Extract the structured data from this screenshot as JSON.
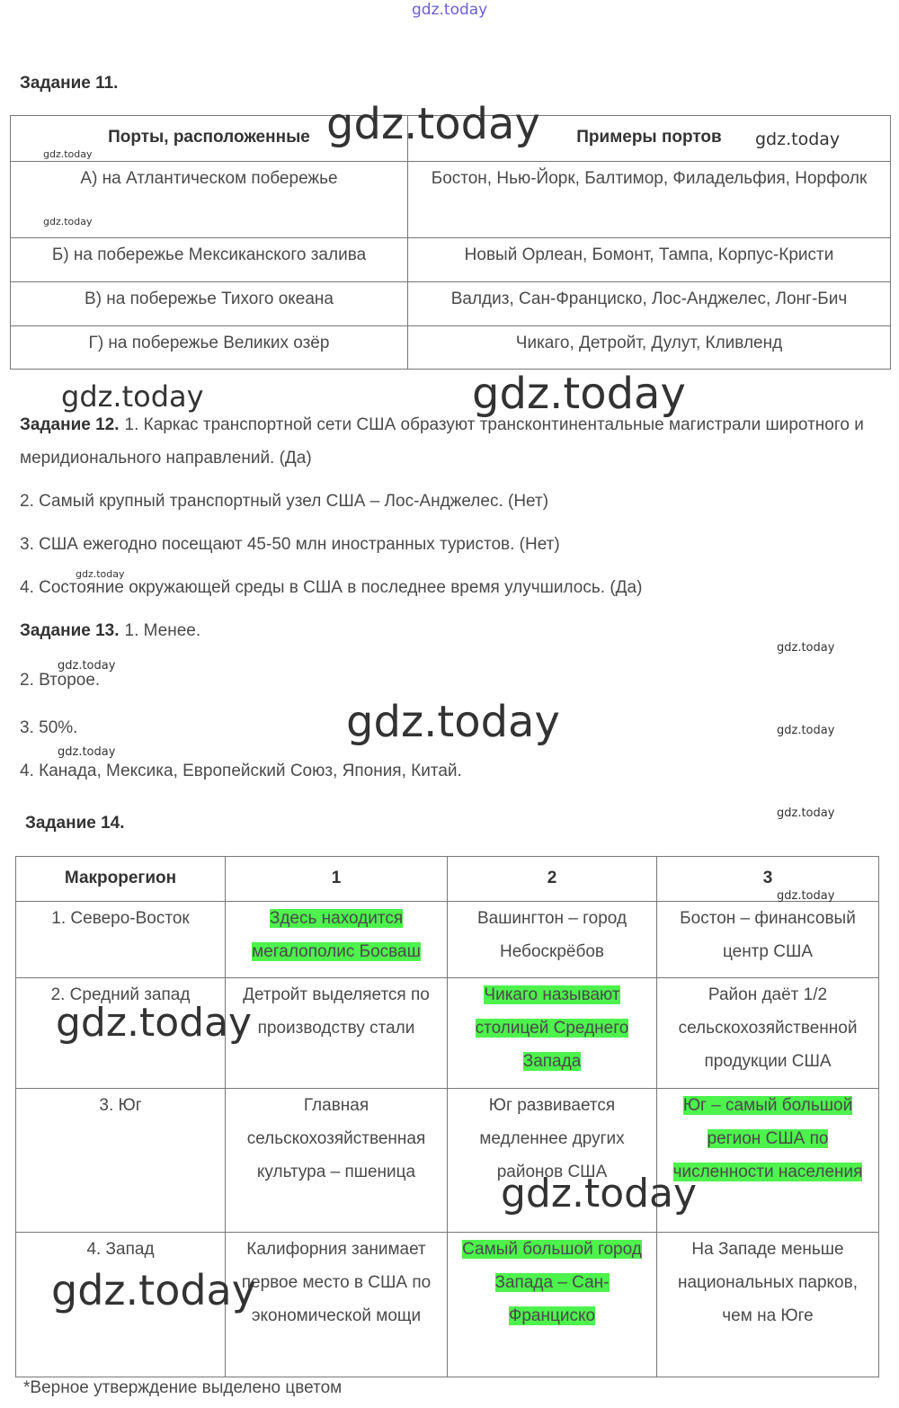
{
  "watermark_top": "gdz.today",
  "task11": {
    "title": "Задание 11.",
    "table": {
      "header": [
        "Порты, расположенные",
        "Примеры портов"
      ],
      "rows": [
        [
          "А) на Атлантическом побережье",
          "Бостон, Нью-Йорк, Балтимор, Филадельфия, Норфолк"
        ],
        [
          "Б) на побережье Мексиканского залива",
          "Новый Орлеан, Бомонт, Тампа, Корпус-Кристи"
        ],
        [
          "В) на побережье Тихого океана",
          "Валдиз, Сан-Франциско, Лос-Анджелес, Лонг-Бич"
        ],
        [
          "Г) на побережье Великих озёр",
          "Чикаго, Детройт, Дулут, Кливленд"
        ]
      ]
    }
  },
  "task12": {
    "title": "Задание 12.",
    "items": [
      "1. Каркас транспортной сети США образуют трансконтинентальные магистрали широтного и меридионального направлений. (Да)",
      "2. Самый крупный транспортный узел США – Лос-Анджелес. (Нет)",
      "3. США ежегодно посещают 45-50 млн иностранных туристов. (Нет)",
      "4. Состояние окружающей среды в США в последнее время улучшилось. (Да)"
    ]
  },
  "task13": {
    "title": "Задание 13.",
    "items": [
      "1. Менее.",
      "2. Второе.",
      "3. 50%.",
      "4. Канада, Мексика, Европейский Союз, Япония, Китай."
    ]
  },
  "task14": {
    "title": "Задание 14.",
    "table": {
      "header": [
        "Макрорегион",
        "1",
        "2",
        "3"
      ],
      "rows": [
        [
          {
            "text": "1. Северо-Восток",
            "highlight": false
          },
          {
            "text": "Здесь находится мегалополис Босваш",
            "highlight": true
          },
          {
            "text": "Вашингтон – город Небоскрёбов",
            "highlight": false
          },
          {
            "text": "Бостон – финансовый центр США",
            "highlight": false
          }
        ],
        [
          {
            "text": "2. Средний запад",
            "highlight": false
          },
          {
            "text": "Детройт выделяется по производству стали",
            "highlight": false
          },
          {
            "text": "Чикаго называют столицей Среднего Запада",
            "highlight": true
          },
          {
            "text": "Район даёт 1/2 сельскохозяйственной продукции США",
            "highlight": false
          }
        ],
        [
          {
            "text": "3. Юг",
            "highlight": false
          },
          {
            "text": "Главная сельскохозяйственная культура – пшеница",
            "highlight": false
          },
          {
            "text": "Юг развивается медленнее других районов США",
            "highlight": false
          },
          {
            "text": "Юг – самый большой регион США по численности населения",
            "highlight": true
          }
        ],
        [
          {
            "text": "4. Запад",
            "highlight": false
          },
          {
            "text": "Калифорния занимает первое место в США по экономической мощи",
            "highlight": false
          },
          {
            "text": "Самый большой город Запада – Сан-Франциско",
            "highlight": true
          },
          {
            "text": "На Западе меньше национальных парков, чем на Юге",
            "highlight": false
          }
        ]
      ]
    }
  },
  "footnote": "*Верное утверждение выделено цветом",
  "watermarks": [
    "gdz.today",
    "gdz.today",
    "gdz.today",
    "gdz.today",
    "gdz.today",
    "gdz.today",
    "gdz.today",
    "gdz.today",
    "gdz.today",
    "gdz.today",
    "gdz.today",
    "gdz.today",
    "gdz.today",
    "gdz.today",
    "gdz.today",
    "gdz.today",
    "gdz.today"
  ]
}
